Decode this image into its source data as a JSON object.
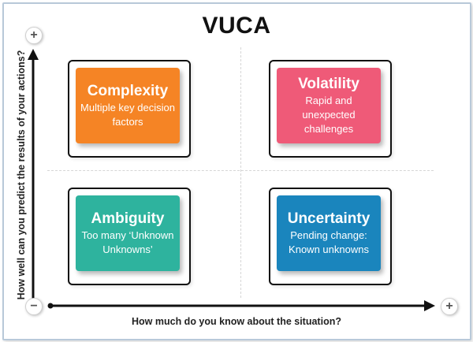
{
  "title": "VUCA",
  "axes": {
    "y_label": "How well can you predict the results of your actions?",
    "x_label": "How much do you know about the situation?",
    "plus_symbol": "+",
    "minus_symbol": "−"
  },
  "quadrants": [
    {
      "title": "Complexity",
      "description": "Multiple key decision factors",
      "color": "#f58425"
    },
    {
      "title": "Volatility",
      "description": "Rapid and unexpected challenges",
      "color": "#ef5a78"
    },
    {
      "title": "Ambiguity",
      "description": "Too many ‘Unknown Unknowns’",
      "color": "#2eb39e"
    },
    {
      "title": "Uncertainty",
      "description": "Pending change: Known unknowns",
      "color": "#1a85bd"
    }
  ]
}
